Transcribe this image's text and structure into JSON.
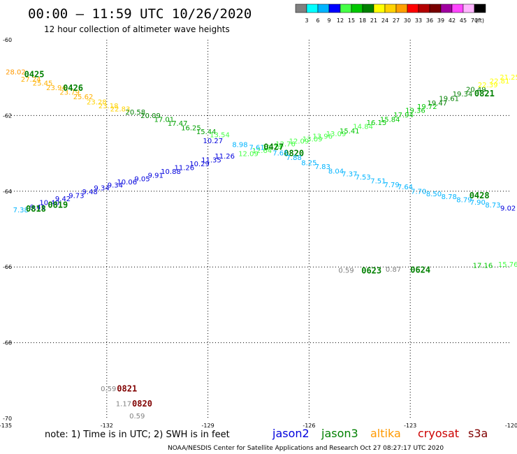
{
  "header": {
    "title": "00:00 – 11:59 UTC 10/26/2020",
    "subtitle": "12 hour collection of altimeter wave heights"
  },
  "colorbar": {
    "labels": [
      "3",
      "6",
      "9",
      "12",
      "15",
      "18",
      "21",
      "24",
      "27",
      "30",
      "33",
      "36",
      "39",
      "42",
      "45",
      "70"
    ],
    "unit": "(ft)",
    "colors": [
      "#808080",
      "#00ffff",
      "#00b4ff",
      "#0000ff",
      "#46ff46",
      "#00c800",
      "#008000",
      "#ffff00",
      "#ffd200",
      "#ffa000",
      "#ff0000",
      "#b40000",
      "#780000",
      "#a000a0",
      "#ff46ff",
      "#ffb4ff",
      "#000000"
    ]
  },
  "footer": {
    "note": "note:  1) Time is in UTC; 2) SWH is in feet",
    "satellites": [
      {
        "name": "jason2",
        "color": "#0000dd"
      },
      {
        "name": "jason3",
        "color": "#008000"
      },
      {
        "name": "altika",
        "color": "#ff9900"
      },
      {
        "name": "cryosat",
        "color": "#cc0000"
      },
      {
        "name": "s3a",
        "color": "#800000"
      }
    ],
    "credit": "NOAA/NESDIS Center for Satellite Applications and Research    Oct 27 08:27:17 UTC 2020"
  },
  "chart_data": {
    "type": "scatter",
    "title": "00:00 – 11:59 UTC 10/26/2020",
    "subtitle": "12 hour collection of altimeter wave heights",
    "xlim": [
      -135,
      -120
    ],
    "ylim": [
      -70,
      -60
    ],
    "x_ticks": [
      "-135",
      "-132",
      "-129",
      "-126",
      "-123",
      "-120"
    ],
    "y_ticks": [
      "-60",
      "-62",
      "-64",
      "-66",
      "-68",
      "-70"
    ],
    "grid": true,
    "series": [
      {
        "name": "altika",
        "points": [
          {
            "x": -134.7,
            "y": -60.91,
            "label": "28.02",
            "color": "#ff9900"
          },
          {
            "x": -134.25,
            "y": -61.11,
            "label": "27.24",
            "color": "#ffb000"
          },
          {
            "x": -133.9,
            "y": -61.21,
            "label": "25.45",
            "color": "#ffb000"
          },
          {
            "x": -133.5,
            "y": -61.33,
            "label": "23.94",
            "color": "#ffb000"
          },
          {
            "x": -133.1,
            "y": -61.45,
            "label": "23.79",
            "color": "#ffb000"
          },
          {
            "x": -132.7,
            "y": -61.57,
            "label": "25.62",
            "color": "#ffb000"
          },
          {
            "x": -132.3,
            "y": -61.71,
            "label": "23.28",
            "color": "#ffd200"
          },
          {
            "x": -131.95,
            "y": -61.81,
            "label": "23.18",
            "color": "#ffd200"
          },
          {
            "x": -131.6,
            "y": -61.89,
            "label": "22.83",
            "color": "#ffd200"
          },
          {
            "x": -131.15,
            "y": -61.97,
            "label": "20.58",
            "color": "#008000"
          },
          {
            "x": -130.7,
            "y": -62.07,
            "label": "20.09",
            "color": "#008000"
          },
          {
            "x": -130.3,
            "y": -62.17,
            "label": "17.01",
            "color": "#00a000"
          },
          {
            "x": -129.9,
            "y": -62.27,
            "label": "17.47",
            "color": "#00a000"
          },
          {
            "x": -129.5,
            "y": -62.39,
            "label": "16.25",
            "color": "#00a000"
          },
          {
            "x": -129.05,
            "y": -62.49,
            "label": "15.44",
            "color": "#00a000"
          },
          {
            "x": -128.65,
            "y": -62.57,
            "label": "13.54",
            "color": "#46ff46"
          }
        ],
        "pass_labels": [
          {
            "x": -134.15,
            "y": -60.99,
            "text": "0425",
            "color": "#008000"
          },
          {
            "x": -133.0,
            "y": -61.35,
            "text": "0426",
            "color": "#008000"
          }
        ]
      },
      {
        "name": "jason3",
        "points": [
          {
            "x": -127.8,
            "y": -63.07,
            "label": "12.09",
            "color": "#46ff46"
          },
          {
            "x": -127.4,
            "y": -62.99,
            "label": "12.64",
            "color": "#46ff46"
          },
          {
            "x": -127.1,
            "y": -62.91,
            "label": "12.74",
            "color": "#46ff46"
          },
          {
            "x": -126.7,
            "y": -62.81,
            "label": "12.76",
            "color": "#46ff46"
          },
          {
            "x": -126.3,
            "y": -62.74,
            "label": "12.09",
            "color": "#46ff46"
          },
          {
            "x": -125.9,
            "y": -62.68,
            "label": "13.09",
            "color": "#46ff46"
          },
          {
            "x": -125.6,
            "y": -62.61,
            "label": "13.96",
            "color": "#46ff46"
          },
          {
            "x": -125.2,
            "y": -62.55,
            "label": "13.09",
            "color": "#46ff46"
          },
          {
            "x": -124.8,
            "y": -62.47,
            "label": "15.41",
            "color": "#00c800"
          },
          {
            "x": -124.4,
            "y": -62.35,
            "label": "14.84",
            "color": "#46ff46"
          },
          {
            "x": -124.0,
            "y": -62.25,
            "label": "16.15",
            "color": "#00c800"
          },
          {
            "x": -123.6,
            "y": -62.17,
            "label": "15.84",
            "color": "#00c800"
          },
          {
            "x": -123.2,
            "y": -62.05,
            "label": "17.94",
            "color": "#00c800"
          },
          {
            "x": -122.85,
            "y": -61.93,
            "label": "19.36",
            "color": "#00c800"
          },
          {
            "x": -122.5,
            "y": -61.83,
            "label": "19.72",
            "color": "#00c800"
          },
          {
            "x": -122.2,
            "y": -61.73,
            "label": "19.47",
            "color": "#008000"
          },
          {
            "x": -121.85,
            "y": -61.61,
            "label": "19.61",
            "color": "#008000"
          },
          {
            "x": -121.45,
            "y": -61.49,
            "label": "19.34",
            "color": "#008000"
          },
          {
            "x": -121.05,
            "y": -61.37,
            "label": "20.49",
            "color": "#008000"
          },
          {
            "x": -120.7,
            "y": -61.25,
            "label": "22.39",
            "color": "#ffff00"
          },
          {
            "x": -120.35,
            "y": -61.15,
            "label": "22.81",
            "color": "#ffff00"
          },
          {
            "x": -120.05,
            "y": -61.05,
            "label": "21.25",
            "color": "#ffff00"
          }
        ],
        "pass_labels": [
          {
            "x": -127.05,
            "y": -62.91,
            "text": "0427",
            "color": "#008000"
          },
          {
            "x": -120.8,
            "y": -61.49,
            "text": "0821",
            "color": "#008000"
          }
        ]
      },
      {
        "name": "jason2",
        "points": [
          {
            "x": -134.05,
            "y": -64.48,
            "label": "9.41",
            "color": "#0000dd"
          },
          {
            "x": -133.7,
            "y": -64.36,
            "label": "10.40",
            "color": "#0000dd"
          },
          {
            "x": -133.3,
            "y": -64.26,
            "label": "9.42",
            "color": "#0000dd"
          },
          {
            "x": -132.9,
            "y": -64.18,
            "label": "9.73",
            "color": "#0000dd"
          },
          {
            "x": -132.5,
            "y": -64.08,
            "label": "9.48",
            "color": "#0000dd"
          },
          {
            "x": -132.15,
            "y": -63.98,
            "label": "9.34",
            "color": "#0000dd"
          },
          {
            "x": -131.75,
            "y": -63.9,
            "label": "9.34",
            "color": "#0000dd"
          },
          {
            "x": -131.4,
            "y": -63.82,
            "label": "10.06",
            "color": "#0000dd"
          },
          {
            "x": -130.95,
            "y": -63.74,
            "label": "9.05",
            "color": "#0000dd"
          },
          {
            "x": -130.55,
            "y": -63.64,
            "label": "9.91",
            "color": "#0000dd"
          },
          {
            "x": -130.1,
            "y": -63.54,
            "label": "10.88",
            "color": "#0000dd"
          },
          {
            "x": -129.7,
            "y": -63.44,
            "label": "11.26",
            "color": "#0000dd"
          },
          {
            "x": -129.25,
            "y": -63.34,
            "label": "10.29",
            "color": "#0000dd"
          },
          {
            "x": -128.9,
            "y": -63.24,
            "label": "11.35",
            "color": "#0000dd"
          },
          {
            "x": -128.5,
            "y": -63.14,
            "label": "11.26",
            "color": "#0000dd"
          }
        ],
        "pass_labels": [
          {
            "x": -133.45,
            "y": -64.44,
            "text": "0819",
            "color": "#008000"
          },
          {
            "x": -126.45,
            "y": -63.07,
            "text": "0820",
            "color": "#008000"
          }
        ]
      },
      {
        "name": "cryosat",
        "points": [
          {
            "x": -134.55,
            "y": -64.56,
            "label": "7.38",
            "color": "#00b4ff"
          },
          {
            "x": -128.85,
            "y": -62.73,
            "label": "10.27",
            "color": "#0000dd"
          },
          {
            "x": -128.05,
            "y": -62.83,
            "label": "8.98",
            "color": "#00b4ff"
          },
          {
            "x": -127.55,
            "y": -62.91,
            "label": "7.61",
            "color": "#00b4ff"
          },
          {
            "x": -126.85,
            "y": -63.05,
            "label": "7.65",
            "color": "#00b4ff"
          },
          {
            "x": -126.45,
            "y": -63.17,
            "label": "7.88",
            "color": "#00b4ff"
          },
          {
            "x": -126.0,
            "y": -63.31,
            "label": "8.25",
            "color": "#00b4ff"
          },
          {
            "x": -125.6,
            "y": -63.41,
            "label": "7.83",
            "color": "#00b4ff"
          },
          {
            "x": -125.2,
            "y": -63.53,
            "label": "8.04",
            "color": "#00b4ff"
          },
          {
            "x": -124.8,
            "y": -63.61,
            "label": "7.37",
            "color": "#00b4ff"
          },
          {
            "x": -124.4,
            "y": -63.69,
            "label": "7.53",
            "color": "#00b4ff"
          },
          {
            "x": -123.95,
            "y": -63.79,
            "label": "7.51",
            "color": "#00b4ff"
          },
          {
            "x": -123.55,
            "y": -63.89,
            "label": "7.79",
            "color": "#00b4ff"
          },
          {
            "x": -123.15,
            "y": -63.95,
            "label": "7.64",
            "color": "#00b4ff"
          },
          {
            "x": -122.75,
            "y": -64.07,
            "label": "7.70",
            "color": "#00b4ff"
          },
          {
            "x": -122.3,
            "y": -64.13,
            "label": "8.50",
            "color": "#00b4ff"
          },
          {
            "x": -121.85,
            "y": -64.21,
            "label": "8.78",
            "color": "#00b4ff"
          },
          {
            "x": -121.4,
            "y": -64.29,
            "label": "8.79",
            "color": "#00b4ff"
          },
          {
            "x": -121.0,
            "y": -64.35,
            "label": "7.90",
            "color": "#00b4ff"
          },
          {
            "x": -120.55,
            "y": -64.43,
            "label": "8.73",
            "color": "#00b4ff"
          },
          {
            "x": -120.1,
            "y": -64.51,
            "label": "9.02",
            "color": "#0000dd"
          }
        ],
        "pass_labels": [
          {
            "x": -134.1,
            "y": -64.54,
            "text": "0818",
            "color": "#008000"
          },
          {
            "x": -120.95,
            "y": -64.19,
            "text": "0428",
            "color": "#008000"
          }
        ]
      },
      {
        "name": "s3a",
        "points": [
          {
            "x": -124.9,
            "y": -66.15,
            "label": "0.59",
            "color": "#808080"
          },
          {
            "x": -123.5,
            "y": -66.13,
            "label": "0.87",
            "color": "#808080"
          },
          {
            "x": -120.85,
            "y": -66.02,
            "label": "17.16",
            "color": "#00c800"
          },
          {
            "x": -120.1,
            "y": -66.0,
            "label": "15.76",
            "color": "#46ff46"
          },
          {
            "x": -131.95,
            "y": -69.28,
            "label": "0.59",
            "color": "#808080"
          },
          {
            "x": -131.5,
            "y": -69.68,
            "label": "1.17",
            "color": "#808080"
          },
          {
            "x": -131.1,
            "y": -70.0,
            "label": "0.59",
            "color": "#808080"
          }
        ],
        "pass_labels": [
          {
            "x": -124.15,
            "y": -66.17,
            "text": "0623",
            "color": "#008000"
          },
          {
            "x": -122.7,
            "y": -66.15,
            "text": "0624",
            "color": "#008000"
          },
          {
            "x": -131.4,
            "y": -69.29,
            "text": "0821",
            "color": "#800000"
          },
          {
            "x": -130.95,
            "y": -69.69,
            "text": "0820",
            "color": "#800000"
          }
        ]
      }
    ]
  }
}
